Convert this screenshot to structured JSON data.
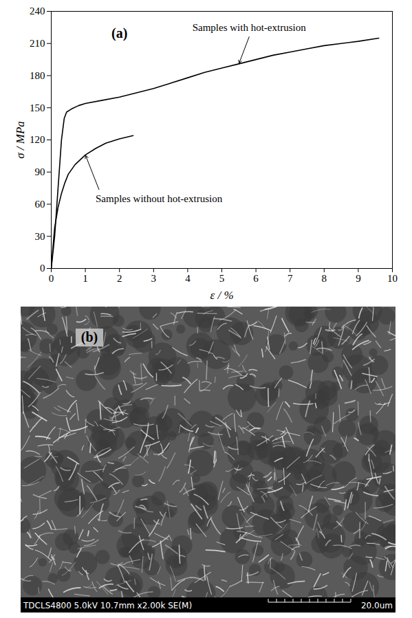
{
  "chart_data": {
    "type": "line",
    "title": "(a)",
    "xlabel": "ε / %",
    "ylabel": "σ / MPa",
    "xlim": [
      0,
      10
    ],
    "xticks": [
      0,
      1,
      2,
      3,
      4,
      5,
      6,
      7,
      8,
      9,
      10
    ],
    "ylim": [
      0,
      240
    ],
    "yticks": [
      0,
      30,
      60,
      90,
      120,
      150,
      180,
      210,
      240
    ],
    "series": [
      {
        "name": "Samples with hot-extrusion",
        "color": "#000000",
        "x": [
          0,
          0.1,
          0.2,
          0.3,
          0.38,
          0.45,
          0.6,
          0.8,
          1,
          1.5,
          2,
          2.5,
          3,
          3.5,
          4,
          4.5,
          5,
          5.5,
          6,
          6.5,
          7,
          7.5,
          8,
          8.5,
          9,
          9.6
        ],
        "values": [
          0,
          30,
          75,
          120,
          140,
          146,
          149,
          152,
          154,
          157,
          160,
          164,
          168,
          173,
          178,
          183,
          187,
          191,
          195,
          199,
          202,
          205,
          208,
          210,
          212,
          215
        ]
      },
      {
        "name": "Samples without hot-extrusion",
        "color": "#000000",
        "x": [
          0,
          0.05,
          0.1,
          0.2,
          0.3,
          0.4,
          0.5,
          0.7,
          1,
          1.3,
          1.6,
          2,
          2.4
        ],
        "values": [
          0,
          20,
          38,
          57,
          70,
          80,
          88,
          97,
          106,
          112,
          117,
          121,
          124
        ]
      }
    ]
  },
  "image": {
    "label": "(b)",
    "info_bar": "TDCLS4800 5.0kV 10.7mm x2.00k SE(M)",
    "scale_bar": "20.0um"
  }
}
